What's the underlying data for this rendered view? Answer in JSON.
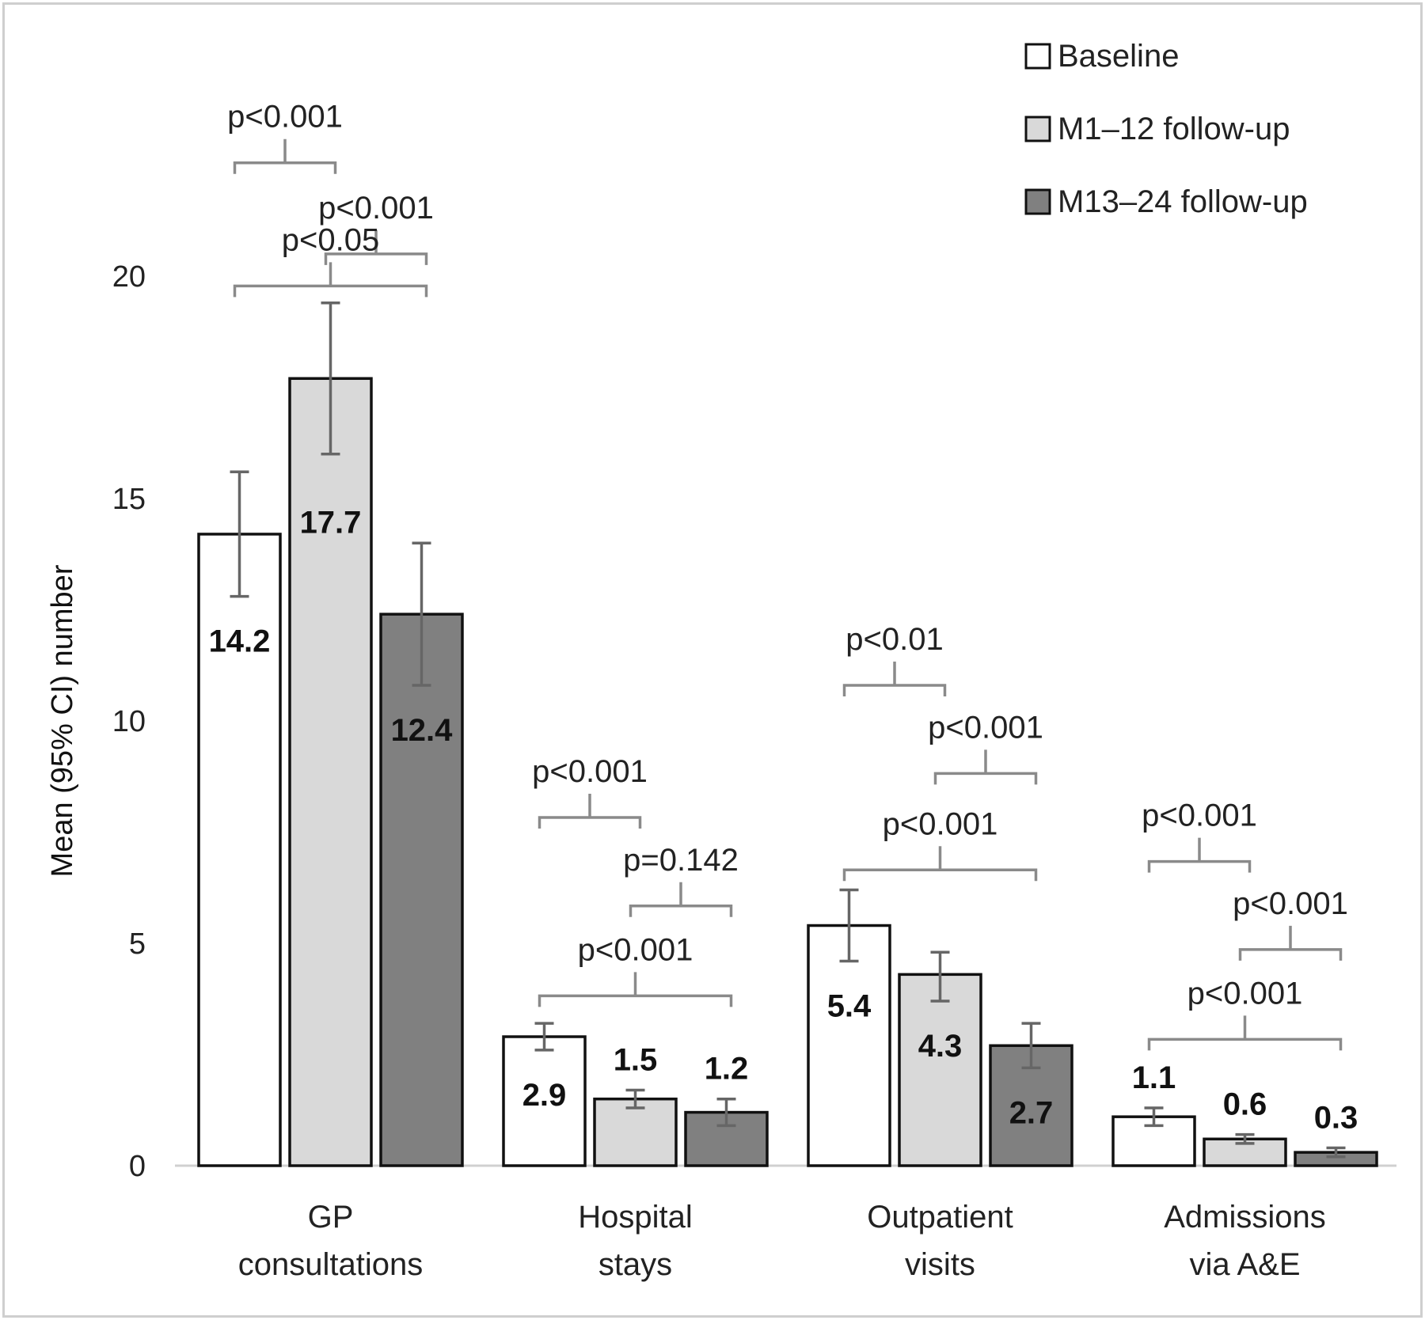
{
  "chart_data": {
    "type": "bar",
    "ylabel": "Mean (95% CI) number",
    "xlabel": "",
    "ylim": [
      0,
      20
    ],
    "yticks": [
      "0",
      "5",
      "10",
      "15",
      "20"
    ],
    "grid": false,
    "legend_position": "top-right",
    "categories": [
      [
        "GP",
        "consultations"
      ],
      [
        "Hospital",
        "stays"
      ],
      [
        "Outpatient",
        "visits"
      ],
      [
        "Admissions",
        "via A&E"
      ]
    ],
    "series": [
      {
        "name": "Baseline",
        "color": "#ffffff",
        "values": [
          14.2,
          2.9,
          5.4,
          1.1
        ],
        "labels": [
          "14.2",
          "2.9",
          "5.4",
          "1.1"
        ],
        "ci_low": [
          12.8,
          2.6,
          4.6,
          0.9
        ],
        "ci_high": [
          15.6,
          3.2,
          6.2,
          1.3
        ]
      },
      {
        "name": "M1–12 follow-up",
        "color": "#d9d9d9",
        "values": [
          17.7,
          1.5,
          4.3,
          0.6
        ],
        "labels": [
          "17.7",
          "1.5",
          "4.3",
          "0.6"
        ],
        "ci_low": [
          16.0,
          1.3,
          3.7,
          0.5
        ],
        "ci_high": [
          19.4,
          1.7,
          4.8,
          0.7
        ]
      },
      {
        "name": "M13–24 follow-up",
        "color": "#808080",
        "values": [
          12.4,
          1.2,
          2.7,
          0.3
        ],
        "labels": [
          "12.4",
          "1.2",
          "2.7",
          "0.3"
        ],
        "ci_low": [
          10.8,
          0.9,
          2.2,
          0.2
        ],
        "ci_high": [
          14.0,
          1.5,
          3.2,
          0.4
        ]
      }
    ],
    "significance": [
      {
        "category": 0,
        "from": 0,
        "to": 1,
        "label": "p<0.001",
        "y": 22.55
      },
      {
        "category": 0,
        "from": 1,
        "to": 2,
        "label": "p<0.001",
        "y": 20.5
      },
      {
        "category": 0,
        "from": 0,
        "to": 2,
        "label": "p<0.05",
        "y": 19.78
      },
      {
        "category": 1,
        "from": 0,
        "to": 1,
        "label": "p<0.001",
        "y": 7.83
      },
      {
        "category": 1,
        "from": 1,
        "to": 2,
        "label": "p=0.142",
        "y": 5.84
      },
      {
        "category": 1,
        "from": 0,
        "to": 2,
        "label": "p<0.001",
        "y": 3.82
      },
      {
        "category": 2,
        "from": 0,
        "to": 1,
        "label": "p<0.01",
        "y": 10.8
      },
      {
        "category": 2,
        "from": 1,
        "to": 2,
        "label": "p<0.001",
        "y": 8.82
      },
      {
        "category": 2,
        "from": 0,
        "to": 2,
        "label": "p<0.001",
        "y": 6.65
      },
      {
        "category": 3,
        "from": 0,
        "to": 1,
        "label": "p<0.001",
        "y": 6.84
      },
      {
        "category": 3,
        "from": 1,
        "to": 2,
        "label": "p<0.001",
        "y": 4.86
      },
      {
        "category": 3,
        "from": 0,
        "to": 2,
        "label": "p<0.001",
        "y": 2.84
      }
    ]
  }
}
